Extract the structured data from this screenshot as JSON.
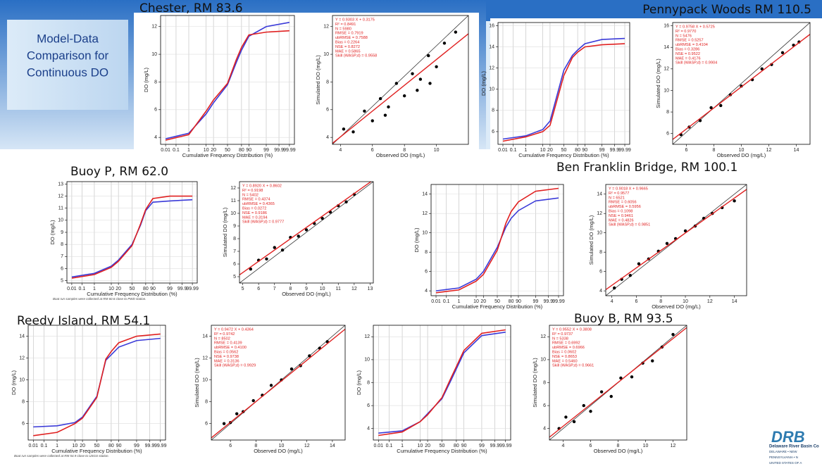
{
  "slide": {
    "title_lines": [
      "Model-Data",
      "Comparison for",
      "Continuous DO"
    ],
    "stations": [
      "Chester, RM 83.6",
      "Pennypack Woods RM 110.5",
      "Buoy P, RM 62.0",
      "Ben Franklin Bridge, RM 100.1",
      "Reedy Island, RM 54.1",
      "Buoy B, RM 93.5"
    ],
    "logo": {
      "mark": "DRB",
      "lines": [
        "Delaware River Basin Co",
        "DELAWARE • NEW",
        "PENNSYLVANIA • N",
        "UNITED STATES OF A"
      ]
    }
  },
  "chart_data": [
    {
      "type": "line",
      "xscale": "probability",
      "xlabel": "Cumulative Frequency Distribution (%)",
      "ylabel": "DO (mg/L)",
      "x": [
        0.01,
        1,
        10,
        20,
        50,
        70,
        80,
        90,
        99,
        99.99
      ],
      "xlim": [
        0.01,
        99.99
      ],
      "xticks": [
        0.01,
        0.1,
        1,
        10,
        20,
        50,
        80,
        90,
        99,
        99.9,
        99.99
      ],
      "ylim": [
        3.5,
        12.8
      ],
      "yticks": [
        4,
        6,
        8,
        10,
        12
      ],
      "grid": true,
      "series": [
        {
          "color": "#3a3ad8",
          "values": [
            3.9,
            4.3,
            5.7,
            6.5,
            7.8,
            9.4,
            10.3,
            11.3,
            12.0,
            12.3
          ]
        },
        {
          "color": "#e02020",
          "values": [
            3.8,
            4.2,
            5.9,
            6.7,
            7.9,
            9.6,
            10.5,
            11.4,
            11.6,
            11.7
          ]
        }
      ]
    },
    {
      "type": "scatter",
      "xlabel": "Observed DO (mg/L)",
      "ylabel": "Simulated DO (mg/L)",
      "color": "#000000",
      "x": [
        4.2,
        4.8,
        5.5,
        6.0,
        6.5,
        7.0,
        7.5,
        8.0,
        8.5,
        9.0,
        9.5,
        10.0,
        10.5,
        11.2,
        6.8,
        8.8,
        9.6
      ],
      "values": [
        4.6,
        4.4,
        5.9,
        5.2,
        6.8,
        6.2,
        7.9,
        7.0,
        8.6,
        8.2,
        9.9,
        9.1,
        10.8,
        11.6,
        5.6,
        7.4,
        7.9
      ],
      "xlim": [
        3.5,
        12
      ],
      "xticks": [
        4,
        6,
        8,
        10
      ],
      "ylim": [
        3.5,
        12.8
      ],
      "yticks": [
        4,
        6,
        8,
        10,
        12
      ],
      "fit": {
        "slope": 0.9303,
        "intercept": 0.3175,
        "color": "#e02020"
      },
      "annotations": [
        "Y = 0.9303 X + 0.3175",
        "R² = 0.8491",
        "N = 5980",
        "RMSE = 0.7919",
        "ubRMSE = 0.7588",
        "Bias = 0.2264",
        "NSE = 0.8272",
        "MAE = 0.5865",
        "Skill (WASP,d) = 0.9558"
      ]
    },
    {
      "type": "line",
      "xscale": "probability",
      "xlabel": "Cumulative Frequency Distribution (%)",
      "ylabel": "DO (mg/L)",
      "x": [
        0.01,
        1,
        10,
        20,
        50,
        70,
        80,
        90,
        99,
        99.99
      ],
      "xlim": [
        0.01,
        99.99
      ],
      "xticks": [
        0.01,
        0.1,
        1,
        10,
        20,
        50,
        80,
        90,
        99,
        99.9,
        99.99
      ],
      "ylim": [
        4.8,
        16.3
      ],
      "yticks": [
        6,
        8,
        10,
        12,
        14,
        16
      ],
      "grid": true,
      "series": [
        {
          "color": "#3a3ad8",
          "values": [
            5.3,
            5.6,
            6.2,
            7.0,
            11.8,
            13.2,
            13.7,
            14.3,
            14.7,
            14.8
          ]
        },
        {
          "color": "#e02020",
          "values": [
            5.1,
            5.5,
            6.0,
            6.6,
            11.3,
            13.0,
            13.5,
            14.0,
            14.2,
            14.3
          ]
        }
      ]
    },
    {
      "type": "scatter",
      "xlabel": "Observed DO (mg/L)",
      "ylabel": "Simulated DO (mg/L)",
      "color": "#000000",
      "x": [
        5.6,
        6.2,
        7.0,
        7.8,
        8.5,
        9.2,
        10.0,
        10.8,
        11.5,
        12.2,
        13.0,
        13.8,
        14.2
      ],
      "values": [
        5.9,
        6.6,
        7.2,
        8.4,
        8.6,
        9.6,
        10.4,
        11.0,
        12.0,
        12.4,
        13.5,
        14.2,
        14.5
      ],
      "xlim": [
        5,
        15
      ],
      "xticks": [
        6,
        8,
        10,
        12,
        14
      ],
      "ylim": [
        5,
        16.3
      ],
      "yticks": [
        6,
        8,
        10,
        12,
        14,
        16
      ],
      "fit": {
        "slope": 0.9758,
        "intercept": 0.5725,
        "color": "#e02020"
      },
      "annotations": [
        "Y = 0.9758 X + 0.5725",
        "R² = 0.9770",
        "N = 5476",
        "RMSE = 0.5257",
        "ubRMSE = 0.4104",
        "Bias = 0.3286",
        "NSE = 0.9522",
        "MAE = 0.4176",
        "Skill (WASP,d) = 0.9904"
      ]
    },
    {
      "type": "line",
      "xscale": "probability",
      "xlabel": "Cumulative Frequency Distribution (%)",
      "ylabel": "DO (mg/L)",
      "note": "Boat run samples were collected at RM 60.6 close to PWD station.",
      "x": [
        0.01,
        1,
        10,
        20,
        50,
        70,
        80,
        90,
        99,
        99.99
      ],
      "xlim": [
        0.01,
        99.99
      ],
      "xticks": [
        0.01,
        0.1,
        1,
        10,
        20,
        50,
        80,
        90,
        99,
        99.9,
        99.99
      ],
      "ylim": [
        4.8,
        13.2
      ],
      "yticks": [
        5,
        6,
        7,
        8,
        9,
        10,
        11,
        12,
        13
      ],
      "grid": true,
      "series": [
        {
          "color": "#3a3ad8",
          "values": [
            5.3,
            5.6,
            6.2,
            6.7,
            8.0,
            9.6,
            10.8,
            11.5,
            11.6,
            11.7
          ]
        },
        {
          "color": "#e02020",
          "values": [
            5.2,
            5.5,
            6.1,
            6.6,
            7.9,
            9.7,
            10.9,
            11.8,
            12.0,
            12.0
          ]
        }
      ]
    },
    {
      "type": "scatter",
      "xlabel": "Observed DO (mg/L)",
      "ylabel": "Simulated DO (mg/L)",
      "color": "#000000",
      "x": [
        5.5,
        6.0,
        6.5,
        7.0,
        7.5,
        8.0,
        8.5,
        9.0,
        9.5,
        10.0,
        10.5,
        11.0,
        11.5,
        12.0
      ],
      "values": [
        5.6,
        6.3,
        6.4,
        7.3,
        7.1,
        8.1,
        8.2,
        8.7,
        9.2,
        9.6,
        10.1,
        10.6,
        10.9,
        11.5
      ],
      "xlim": [
        4.8,
        13.2
      ],
      "xticks": [
        5,
        6,
        7,
        8,
        9,
        10,
        11,
        12,
        13
      ],
      "ylim": [
        4.5,
        12.5
      ],
      "yticks": [
        5,
        6,
        7,
        8,
        9,
        10,
        11,
        12
      ],
      "fit": {
        "slope": 0.892,
        "intercept": 0.8602,
        "color": "#e02020"
      },
      "annotations": [
        "Y = 0.8920 X + 0.8602",
        "R² = 0.9198",
        "N = 5402",
        "RMSE = 0.4374",
        "ubRMSE = 0.4365",
        "Bias = 0.0272",
        "NSE = 0.9186",
        "MAE = 0.3194",
        "Skill (WASP,d) = 0.9777"
      ]
    },
    {
      "type": "line",
      "xscale": "probability",
      "xlabel": "Cumulative Frequency Distribution (%)",
      "ylabel": "DO (mg/L)",
      "x": [
        0.01,
        1,
        10,
        20,
        50,
        70,
        80,
        90,
        99,
        99.99
      ],
      "xlim": [
        0.01,
        99.99
      ],
      "xticks": [
        0.01,
        0.1,
        1,
        10,
        20,
        50,
        80,
        90,
        99,
        99.9,
        99.99
      ],
      "ylim": [
        3.5,
        15
      ],
      "yticks": [
        4,
        6,
        8,
        10,
        12,
        14
      ],
      "grid": true,
      "series": [
        {
          "color": "#3a3ad8",
          "values": [
            4.0,
            4.3,
            5.2,
            6.0,
            8.5,
            10.6,
            11.5,
            12.3,
            13.3,
            13.6
          ]
        },
        {
          "color": "#e02020",
          "values": [
            3.8,
            4.1,
            5.0,
            5.7,
            8.2,
            11.0,
            12.2,
            13.2,
            14.3,
            14.6
          ]
        }
      ]
    },
    {
      "type": "scatter",
      "xlabel": "Observed DO (mg/L)",
      "ylabel": "Simulated DO (mg/L)",
      "color": "#000000",
      "x": [
        4.2,
        4.8,
        5.5,
        6.2,
        7.0,
        7.8,
        8.5,
        9.2,
        10.0,
        10.8,
        11.5,
        12.2,
        13.0,
        14.0
      ],
      "values": [
        4.3,
        5.2,
        5.6,
        6.8,
        7.3,
        8.1,
        8.9,
        9.4,
        10.2,
        10.7,
        11.5,
        12.0,
        12.6,
        13.3
      ],
      "xlim": [
        3.5,
        15
      ],
      "xticks": [
        4,
        6,
        8,
        10,
        12,
        14
      ],
      "ylim": [
        3.5,
        15
      ],
      "yticks": [
        4,
        6,
        8,
        10,
        12,
        14
      ],
      "fit": {
        "slope": 0.9018,
        "intercept": 0.9665,
        "color": "#e02020"
      },
      "annotations": [
        "Y = 0.9018 X + 0.9665",
        "R² = 0.9577",
        "N = 6521",
        "RMSE = 0.6056",
        "ubRMSE = 0.5956",
        "Bias = 0.1098",
        "NSE = 0.9461",
        "MAE = 0.4826",
        "Skill (WASP,d) = 0.9851"
      ]
    },
    {
      "type": "line",
      "xscale": "probability",
      "xlabel": "Cumulative Frequency Distribution (%)",
      "ylabel": "DO (mg/L)",
      "note": "Boat run samples were collected at RM 54.9 close to USGS station.",
      "x": [
        0.01,
        1,
        10,
        20,
        50,
        70,
        80,
        90,
        99,
        99.99
      ],
      "xlim": [
        0.01,
        99.99
      ],
      "xticks": [
        0.01,
        0.1,
        1,
        10,
        20,
        50,
        80,
        90,
        99,
        99.9,
        99.99
      ],
      "ylim": [
        4.5,
        15
      ],
      "yticks": [
        6,
        8,
        10,
        12,
        14
      ],
      "grid": true,
      "series": [
        {
          "color": "#3a3ad8",
          "values": [
            5.7,
            5.8,
            6.1,
            6.6,
            8.5,
            11.8,
            12.3,
            13.0,
            13.6,
            13.8
          ]
        },
        {
          "color": "#e02020",
          "values": [
            4.9,
            5.2,
            6.0,
            6.5,
            8.4,
            11.9,
            12.6,
            13.4,
            14.0,
            14.2
          ]
        }
      ]
    },
    {
      "type": "scatter",
      "xlabel": "Observed DO (mg/L)",
      "ylabel": "Simulated DO (mg/L)",
      "color": "#000000",
      "x": [
        5.5,
        6.0,
        6.5,
        7.0,
        7.8,
        8.5,
        9.2,
        10.0,
        10.8,
        11.5,
        12.2,
        13.0,
        13.6
      ],
      "values": [
        6.0,
        6.1,
        6.9,
        7.1,
        8.1,
        8.6,
        9.5,
        10.0,
        11.0,
        11.3,
        12.2,
        12.9,
        13.5
      ],
      "xlim": [
        4.5,
        15
      ],
      "xticks": [
        6,
        8,
        10,
        12,
        14
      ],
      "ylim": [
        4.5,
        15
      ],
      "yticks": [
        6,
        8,
        10,
        12,
        14
      ],
      "fit": {
        "slope": 0.9472,
        "intercept": 0.4364,
        "color": "#e02020"
      },
      "annotations": [
        "Y = 0.9472 X + 0.4364",
        "R² = 0.9742",
        "N = 8502",
        "RMSE = 0.4139",
        "ubRMSE = 0.4100",
        "Bias = 0.0562",
        "NSE = 0.9738",
        "MAE = 0.3136",
        "Skill (WASP,d) = 0.9929"
      ]
    },
    {
      "type": "line",
      "xscale": "probability",
      "xlabel": "Cumulative Frequency Distribution (%)",
      "ylabel": "DO (mg/L)",
      "x": [
        0.01,
        1,
        10,
        20,
        50,
        70,
        80,
        90,
        99,
        99.99
      ],
      "xlim": [
        0.01,
        99.99
      ],
      "xticks": [
        0.01,
        0.1,
        1,
        10,
        20,
        50,
        80,
        90,
        99,
        99.9,
        99.99
      ],
      "ylim": [
        3,
        13
      ],
      "yticks": [
        4,
        6,
        8,
        10,
        12
      ],
      "grid": true,
      "series": [
        {
          "color": "#3a3ad8",
          "values": [
            3.6,
            3.8,
            4.6,
            5.3,
            6.6,
            8.2,
            9.2,
            10.6,
            12.1,
            12.4
          ]
        },
        {
          "color": "#e02020",
          "values": [
            3.4,
            3.7,
            4.6,
            5.2,
            6.7,
            8.4,
            9.4,
            10.8,
            12.3,
            12.6
          ]
        }
      ]
    },
    {
      "type": "scatter",
      "xlabel": "Observed DO (mg/L)",
      "ylabel": "Simulated DO (mg/L)",
      "color": "#000000",
      "x": [
        3.7,
        4.2,
        4.8,
        5.5,
        6.0,
        6.8,
        7.5,
        8.2,
        9.0,
        9.8,
        10.5,
        11.2,
        12.0
      ],
      "values": [
        4.0,
        5.0,
        4.6,
        6.0,
        5.5,
        7.2,
        6.8,
        8.4,
        8.5,
        9.7,
        9.9,
        11.1,
        12.2
      ],
      "xlim": [
        3,
        13
      ],
      "xticks": [
        4,
        6,
        8,
        10,
        12
      ],
      "ylim": [
        3,
        13
      ],
      "yticks": [
        4,
        6,
        8,
        10,
        12
      ],
      "fit": {
        "slope": 0.9552,
        "intercept": 0.3808,
        "color": "#e02020"
      },
      "annotations": [
        "Y = 0.9552 X + 0.3808",
        "R² = 0.9737",
        "N = 5338",
        "RMSE = 0.6992",
        "ubRMSE = 0.6966",
        "Bias = 0.0602",
        "NSE = 0.8653",
        "MAE = 0.5460",
        "Skill (WASP,d) = 0.9661"
      ]
    }
  ]
}
